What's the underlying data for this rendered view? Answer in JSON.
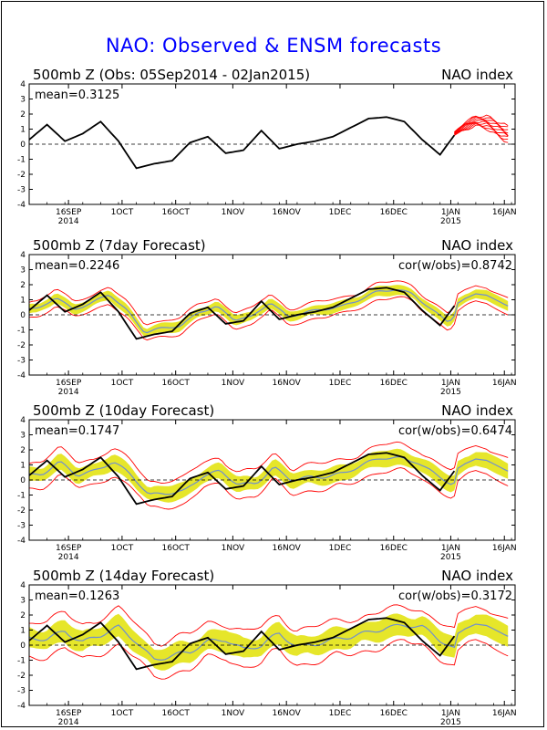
{
  "title": "NAO: Observed & ENSM forecasts",
  "y_ticks": [
    "4",
    "3",
    "2",
    "1",
    "0",
    "-1",
    "-2",
    "-3",
    "-4"
  ],
  "x_ticks": [
    {
      "label": "16SEP",
      "sub": "2014"
    },
    {
      "label": "1OCT",
      "sub": ""
    },
    {
      "label": "16OCT",
      "sub": ""
    },
    {
      "label": "1NOV",
      "sub": ""
    },
    {
      "label": "16NOV",
      "sub": ""
    },
    {
      "label": "1DEC",
      "sub": ""
    },
    {
      "label": "16DEC",
      "sub": ""
    },
    {
      "label": "1JAN",
      "sub": "2015"
    },
    {
      "label": "16JAN",
      "sub": ""
    }
  ],
  "colors": {
    "observed": "#000000",
    "ensemble": "#ff0000",
    "spread": "#e6e62a",
    "mean": "#6f8fd0",
    "title": "#0000ff"
  },
  "panels": [
    {
      "title": "500mb Z (Obs: 05Sep2014 - 02Jan2015)",
      "right_label": "NAO index",
      "mean": "mean=0.3125",
      "cor": "",
      "kind": "obs"
    },
    {
      "title": "500mb Z (7day Forecast)",
      "right_label": "NAO index",
      "mean": "mean=0.2246",
      "cor": "cor(w/obs)=0.8742",
      "kind": "fc",
      "lag": 7,
      "width": 0.35,
      "env": 0.55
    },
    {
      "title": "500mb Z (10day Forecast)",
      "right_label": "NAO index",
      "mean": "mean=0.1747",
      "cor": "cor(w/obs)=0.6474",
      "kind": "fc",
      "lag": 10,
      "width": 0.55,
      "env": 0.9
    },
    {
      "title": "500mb Z (14day Forecast)",
      "right_label": "NAO index",
      "mean": "mean=0.1263",
      "cor": "cor(w/obs)=0.3172",
      "kind": "fc",
      "lag": 14,
      "width": 0.75,
      "env": 1.2
    }
  ],
  "chart_data": {
    "type": "line",
    "x": [
      "2014-09-05",
      "2014-09-10",
      "2014-09-15",
      "2014-09-20",
      "2014-09-25",
      "2014-09-30",
      "2014-10-05",
      "2014-10-10",
      "2014-10-15",
      "2014-10-20",
      "2014-10-25",
      "2014-10-30",
      "2014-11-04",
      "2014-11-09",
      "2014-11-14",
      "2014-11-19",
      "2014-11-24",
      "2014-11-29",
      "2014-12-04",
      "2014-12-09",
      "2014-12-14",
      "2014-12-19",
      "2014-12-24",
      "2014-12-29",
      "2015-01-02"
    ],
    "observed": [
      0.3,
      1.3,
      0.2,
      0.7,
      1.5,
      0.2,
      -1.6,
      -1.3,
      -1.1,
      0.1,
      0.5,
      -0.6,
      -0.4,
      0.9,
      -0.3,
      0.0,
      0.2,
      0.5,
      1.1,
      1.7,
      1.8,
      1.5,
      0.3,
      -0.7,
      0.6
    ],
    "forecast_x": [
      "2015-01-02",
      "2015-01-05",
      "2015-01-08",
      "2015-01-11",
      "2015-01-14",
      "2015-01-17"
    ],
    "forecast_members_range": [
      [
        0.6,
        0.8
      ],
      [
        0.9,
        1.5
      ],
      [
        1.2,
        1.9
      ],
      [
        1.0,
        1.9
      ],
      [
        0.5,
        1.6
      ],
      [
        0.1,
        1.2
      ]
    ],
    "ylim": [
      -4,
      4
    ],
    "xlim": [
      "2014-09-05",
      "2015-01-19"
    ]
  }
}
